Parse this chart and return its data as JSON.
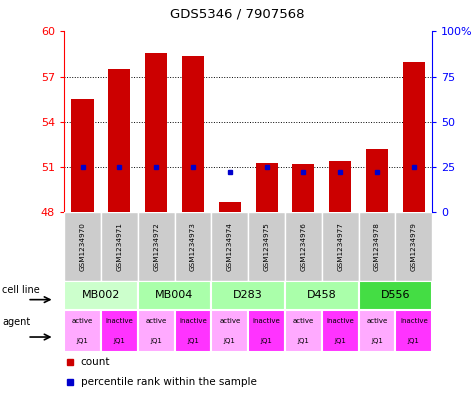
{
  "title": "GDS5346 / 7907568",
  "gsm_labels": [
    "GSM1234970",
    "GSM1234971",
    "GSM1234972",
    "GSM1234973",
    "GSM1234974",
    "GSM1234975",
    "GSM1234976",
    "GSM1234977",
    "GSM1234978",
    "GSM1234979"
  ],
  "count_values": [
    55.5,
    57.5,
    58.6,
    58.4,
    48.7,
    51.3,
    51.2,
    51.4,
    52.2,
    58.0
  ],
  "percentile_values": [
    25,
    25,
    25,
    25,
    22,
    25,
    22,
    22,
    22,
    25
  ],
  "ylim_left": [
    48,
    60
  ],
  "ylim_right": [
    0,
    100
  ],
  "yticks_left": [
    48,
    51,
    54,
    57,
    60
  ],
  "yticks_right": [
    0,
    25,
    50,
    75,
    100
  ],
  "cell_lines": [
    {
      "label": "MB002",
      "cols": [
        0,
        1
      ],
      "color": "#ccffcc"
    },
    {
      "label": "MB004",
      "cols": [
        2,
        3
      ],
      "color": "#aaffaa"
    },
    {
      "label": "D283",
      "cols": [
        4,
        5
      ],
      "color": "#aaffaa"
    },
    {
      "label": "D458",
      "cols": [
        6,
        7
      ],
      "color": "#aaffaa"
    },
    {
      "label": "D556",
      "cols": [
        8,
        9
      ],
      "color": "#44dd44"
    }
  ],
  "agent_labels": [
    "active",
    "inactive",
    "active",
    "inactive",
    "active",
    "inactive",
    "active",
    "inactive",
    "active",
    "inactive"
  ],
  "agent_sublabels": [
    "JQ1",
    "JQ1",
    "JQ1",
    "JQ1",
    "JQ1",
    "JQ1",
    "JQ1",
    "JQ1",
    "JQ1",
    "JQ1"
  ],
  "agent_active_color": "#ffaaff",
  "agent_inactive_color": "#ff33ff",
  "bar_color": "#cc0000",
  "percentile_color": "#0000cc",
  "gsm_bg_color": "#cccccc",
  "legend_count_color": "#cc0000",
  "legend_percentile_color": "#0000cc"
}
